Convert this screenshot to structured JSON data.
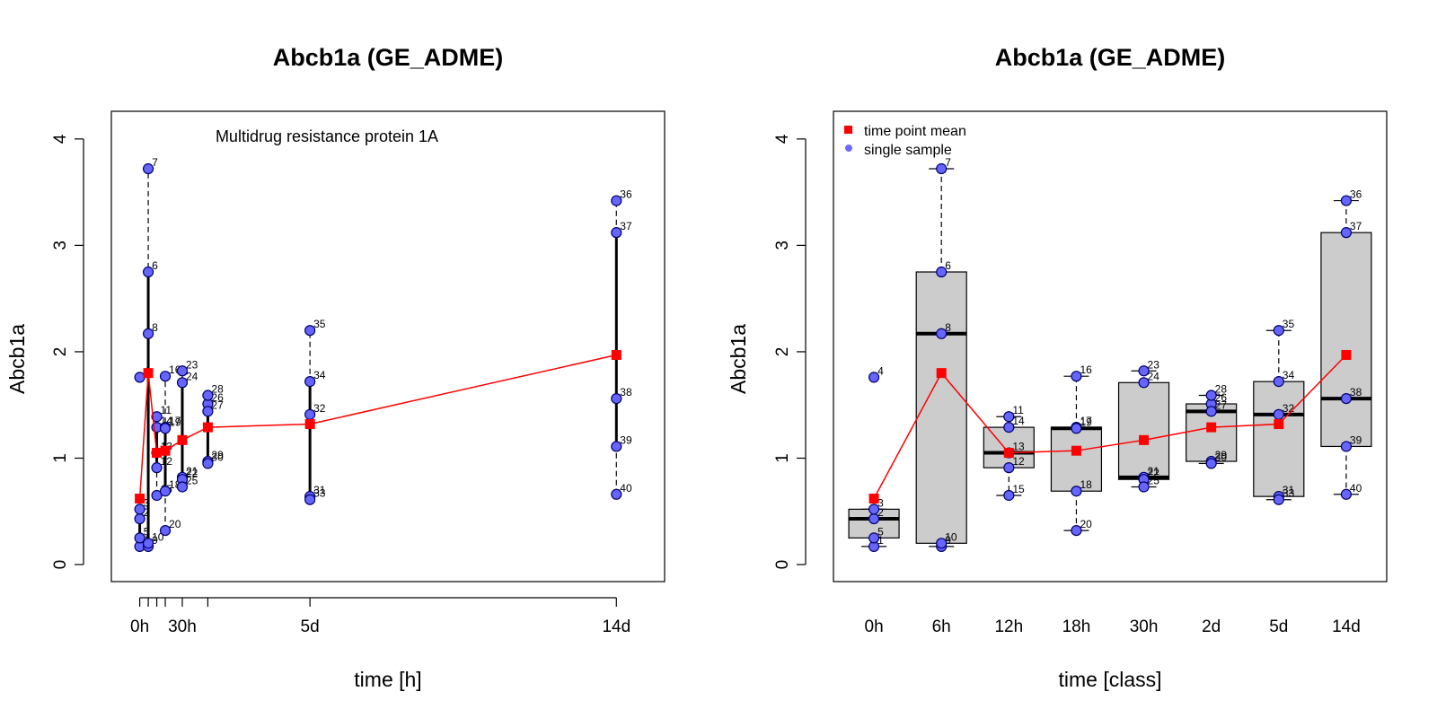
{
  "colors": {
    "point_fill": "#6666ff",
    "point_stroke": "#00006b",
    "mean": "#ff0000",
    "box_fill": "#cccccc",
    "legend_point": "#6b6bff"
  },
  "chart_data": [
    {
      "type": "scatter",
      "title": "Abcb1a (GE_ADME)",
      "xlabel": "time [h]",
      "ylabel": "Abcb1a",
      "annotation": "Multidrug resistance protein 1A",
      "xlim": [
        -20,
        370
      ],
      "ylim": [
        -0.16,
        4.26
      ],
      "yticks": [
        0,
        1,
        2,
        3,
        4
      ],
      "xticks": [
        0,
        6,
        12,
        18,
        30,
        48,
        120,
        336
      ],
      "xtick_labels": [
        {
          "x": 0,
          "label": "0h"
        },
        {
          "x": 30,
          "label": "30h"
        },
        {
          "x": 120,
          "label": "5d"
        },
        {
          "x": 336,
          "label": "14d"
        }
      ],
      "groups": [
        {
          "time": 0,
          "whisker_low": 0.17,
          "q1": 0.25,
          "q3": 0.52,
          "whisker_high": 0.52,
          "mean": 0.62,
          "points": [
            {
              "id": "1",
              "y": 0.17
            },
            {
              "id": "2",
              "y": 0.43
            },
            {
              "id": "3",
              "y": 0.52
            },
            {
              "id": "4",
              "y": 1.76
            },
            {
              "id": "5",
              "y": 0.25
            }
          ]
        },
        {
          "time": 6,
          "whisker_low": 0.17,
          "q1": 0.2,
          "q3": 2.75,
          "whisker_high": 3.72,
          "mean": 1.8,
          "points": [
            {
              "id": "6",
              "y": 2.75
            },
            {
              "id": "7",
              "y": 3.72
            },
            {
              "id": "8",
              "y": 2.17
            },
            {
              "id": "9",
              "y": 0.17
            },
            {
              "id": "10",
              "y": 0.2
            }
          ]
        },
        {
          "time": 12,
          "whisker_low": 0.65,
          "q1": 0.91,
          "q3": 1.29,
          "whisker_high": 1.39,
          "mean": 1.05,
          "points": [
            {
              "id": "11",
              "y": 1.39
            },
            {
              "id": "12",
              "y": 0.91
            },
            {
              "id": "13",
              "y": 1.05
            },
            {
              "id": "14",
              "y": 1.29
            },
            {
              "id": "15",
              "y": 0.65
            }
          ]
        },
        {
          "time": 18,
          "whisker_low": 0.32,
          "q1": 0.69,
          "q3": 1.29,
          "whisker_high": 1.77,
          "mean": 1.07,
          "points": [
            {
              "id": "16",
              "y": 1.77
            },
            {
              "id": "17",
              "y": 1.29
            },
            {
              "id": "18",
              "y": 0.69
            },
            {
              "id": "19",
              "y": 1.28
            },
            {
              "id": "20",
              "y": 0.32
            }
          ]
        },
        {
          "time": 30,
          "whisker_low": 0.73,
          "q1": 0.8,
          "q3": 1.71,
          "whisker_high": 1.82,
          "mean": 1.17,
          "points": [
            {
              "id": "21",
              "y": 0.82
            },
            {
              "id": "22",
              "y": 0.8
            },
            {
              "id": "23",
              "y": 1.82
            },
            {
              "id": "24",
              "y": 1.71
            },
            {
              "id": "25",
              "y": 0.73
            }
          ]
        },
        {
          "time": 48,
          "whisker_low": 0.95,
          "q1": 0.97,
          "q3": 1.51,
          "whisker_high": 1.59,
          "mean": 1.29,
          "points": [
            {
              "id": "26",
              "y": 1.51
            },
            {
              "id": "27",
              "y": 1.44
            },
            {
              "id": "28",
              "y": 1.59
            },
            {
              "id": "29",
              "y": 0.97
            },
            {
              "id": "30",
              "y": 0.95
            }
          ]
        },
        {
          "time": 120,
          "whisker_low": 0.61,
          "q1": 0.64,
          "q3": 1.72,
          "whisker_high": 2.2,
          "mean": 1.32,
          "points": [
            {
              "id": "31",
              "y": 0.64
            },
            {
              "id": "32",
              "y": 1.41
            },
            {
              "id": "33",
              "y": 0.61
            },
            {
              "id": "34",
              "y": 1.72
            },
            {
              "id": "35",
              "y": 2.2
            }
          ]
        },
        {
          "time": 336,
          "whisker_low": 0.66,
          "q1": 1.11,
          "q3": 3.12,
          "whisker_high": 3.42,
          "mean": 1.97,
          "points": [
            {
              "id": "36",
              "y": 3.42
            },
            {
              "id": "37",
              "y": 3.12
            },
            {
              "id": "38",
              "y": 1.56
            },
            {
              "id": "39",
              "y": 1.11
            },
            {
              "id": "40",
              "y": 0.66
            }
          ]
        }
      ]
    },
    {
      "type": "boxplot",
      "title": "Abcb1a (GE_ADME)",
      "xlabel": "time [class]",
      "ylabel": "Abcb1a",
      "ylim": [
        -0.16,
        4.26
      ],
      "yticks": [
        0,
        1,
        2,
        3,
        4
      ],
      "legend": {
        "position": "top-left",
        "entries": [
          {
            "label": "time point mean",
            "marker": "square"
          },
          {
            "label": "single sample",
            "marker": "circle"
          }
        ]
      },
      "categories": [
        "0h",
        "6h",
        "12h",
        "18h",
        "30h",
        "2d",
        "5d",
        "14d"
      ],
      "groups": [
        {
          "median": 0.43,
          "q1": 0.25,
          "q3": 0.52,
          "whisker_low": 0.17,
          "whisker_high": 0.52,
          "mean": 0.62,
          "points": [
            {
              "id": "1",
              "y": 0.17
            },
            {
              "id": "2",
              "y": 0.43
            },
            {
              "id": "3",
              "y": 0.52
            },
            {
              "id": "4",
              "y": 1.76
            },
            {
              "id": "5",
              "y": 0.25
            }
          ]
        },
        {
          "median": 2.17,
          "q1": 0.2,
          "q3": 2.75,
          "whisker_low": 0.17,
          "whisker_high": 3.72,
          "mean": 1.8,
          "points": [
            {
              "id": "6",
              "y": 2.75
            },
            {
              "id": "7",
              "y": 3.72
            },
            {
              "id": "8",
              "y": 2.17
            },
            {
              "id": "9",
              "y": 0.17
            },
            {
              "id": "10",
              "y": 0.2
            }
          ]
        },
        {
          "median": 1.05,
          "q1": 0.91,
          "q3": 1.29,
          "whisker_low": 0.65,
          "whisker_high": 1.39,
          "mean": 1.05,
          "points": [
            {
              "id": "11",
              "y": 1.39
            },
            {
              "id": "12",
              "y": 0.91
            },
            {
              "id": "13",
              "y": 1.05
            },
            {
              "id": "14",
              "y": 1.29
            },
            {
              "id": "15",
              "y": 0.65
            }
          ]
        },
        {
          "median": 1.28,
          "q1": 0.69,
          "q3": 1.29,
          "whisker_low": 0.32,
          "whisker_high": 1.77,
          "mean": 1.07,
          "points": [
            {
              "id": "16",
              "y": 1.77
            },
            {
              "id": "17",
              "y": 1.29
            },
            {
              "id": "18",
              "y": 0.69
            },
            {
              "id": "19",
              "y": 1.28
            },
            {
              "id": "20",
              "y": 0.32
            }
          ]
        },
        {
          "median": 0.82,
          "q1": 0.8,
          "q3": 1.71,
          "whisker_low": 0.73,
          "whisker_high": 1.82,
          "mean": 1.17,
          "points": [
            {
              "id": "21",
              "y": 0.82
            },
            {
              "id": "22",
              "y": 0.8
            },
            {
              "id": "23",
              "y": 1.82
            },
            {
              "id": "24",
              "y": 1.71
            },
            {
              "id": "25",
              "y": 0.73
            }
          ]
        },
        {
          "median": 1.44,
          "q1": 0.97,
          "q3": 1.51,
          "whisker_low": 0.95,
          "whisker_high": 1.59,
          "mean": 1.29,
          "points": [
            {
              "id": "26",
              "y": 1.51
            },
            {
              "id": "27",
              "y": 1.44
            },
            {
              "id": "28",
              "y": 1.59
            },
            {
              "id": "29",
              "y": 0.97
            },
            {
              "id": "30",
              "y": 0.95
            }
          ]
        },
        {
          "median": 1.41,
          "q1": 0.64,
          "q3": 1.72,
          "whisker_low": 0.61,
          "whisker_high": 2.2,
          "mean": 1.32,
          "points": [
            {
              "id": "31",
              "y": 0.64
            },
            {
              "id": "32",
              "y": 1.41
            },
            {
              "id": "33",
              "y": 0.61
            },
            {
              "id": "34",
              "y": 1.72
            },
            {
              "id": "35",
              "y": 2.2
            }
          ]
        },
        {
          "median": 1.56,
          "q1": 1.11,
          "q3": 3.12,
          "whisker_low": 0.66,
          "whisker_high": 3.42,
          "mean": 1.97,
          "points": [
            {
              "id": "36",
              "y": 3.42
            },
            {
              "id": "37",
              "y": 3.12
            },
            {
              "id": "38",
              "y": 1.56
            },
            {
              "id": "39",
              "y": 1.11
            },
            {
              "id": "40",
              "y": 0.66
            }
          ]
        }
      ]
    }
  ]
}
